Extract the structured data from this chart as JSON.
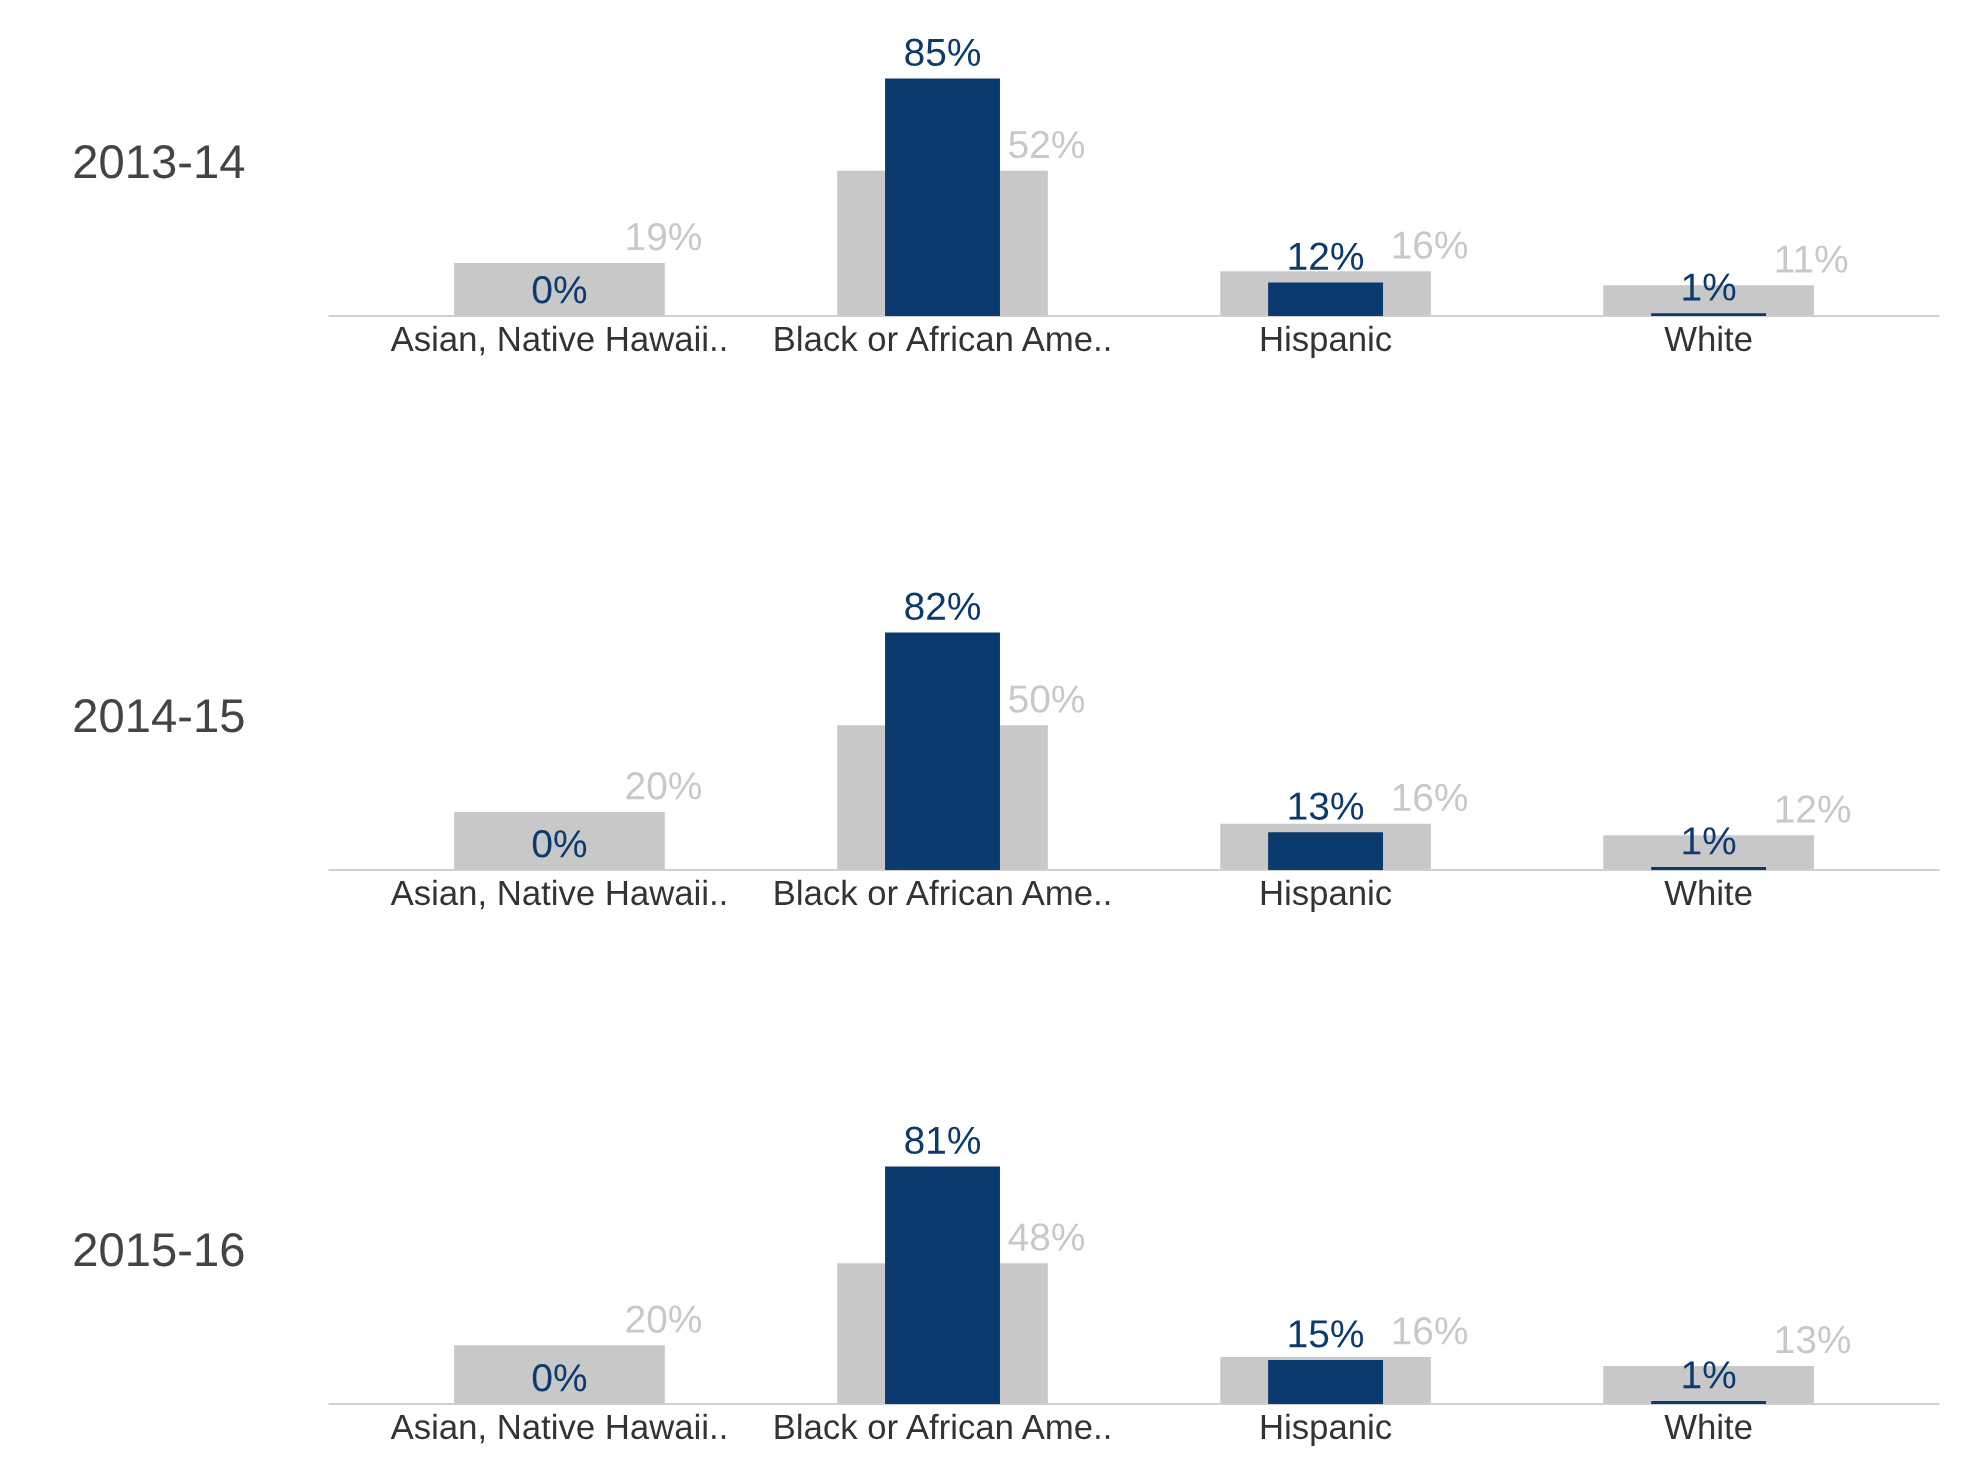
{
  "chart_data": [
    {
      "type": "bar",
      "title": "2013-14",
      "categories": [
        "Asian, Native Hawaii..",
        "Black or African Ame..",
        "Hispanic",
        "White"
      ],
      "grid": false,
      "legend": false,
      "tick_labels": "x",
      "series": [
        {
          "color": "#c8c8c8",
          "values": [
            19,
            52,
            16,
            11
          ],
          "value_labels": [
            "19%",
            "52%",
            "16%",
            "11%"
          ]
        },
        {
          "color": "#0b3a6e",
          "values": [
            0,
            85,
            12,
            1
          ],
          "value_labels": [
            "0%",
            "85%",
            "12%",
            "1%"
          ]
        }
      ]
    },
    {
      "type": "bar",
      "title": "2014-15",
      "categories": [
        "Asian, Native Hawaii..",
        "Black or African Ame..",
        "Hispanic",
        "White"
      ],
      "grid": false,
      "legend": false,
      "tick_labels": "x",
      "series": [
        {
          "color": "#c8c8c8",
          "values": [
            20,
            50,
            16,
            12
          ],
          "value_labels": [
            "20%",
            "50%",
            "16%",
            "12%"
          ]
        },
        {
          "color": "#0b3a6e",
          "values": [
            0,
            82,
            13,
            1
          ],
          "value_labels": [
            "0%",
            "82%",
            "13%",
            "1%"
          ]
        }
      ]
    },
    {
      "type": "bar",
      "title": "2015-16",
      "categories": [
        "Asian, Native Hawaii..",
        "Black or African Ame..",
        "Hispanic",
        "White"
      ],
      "grid": false,
      "legend": false,
      "tick_labels": "x",
      "series": [
        {
          "color": "#c8c8c8",
          "values": [
            20,
            48,
            16,
            13
          ],
          "value_labels": [
            "20%",
            "48%",
            "16%",
            "13%"
          ]
        },
        {
          "color": "#0b3a6e",
          "values": [
            0,
            81,
            15,
            1
          ],
          "value_labels": [
            "0%",
            "81%",
            "15%",
            "1%"
          ]
        }
      ]
    }
  ]
}
